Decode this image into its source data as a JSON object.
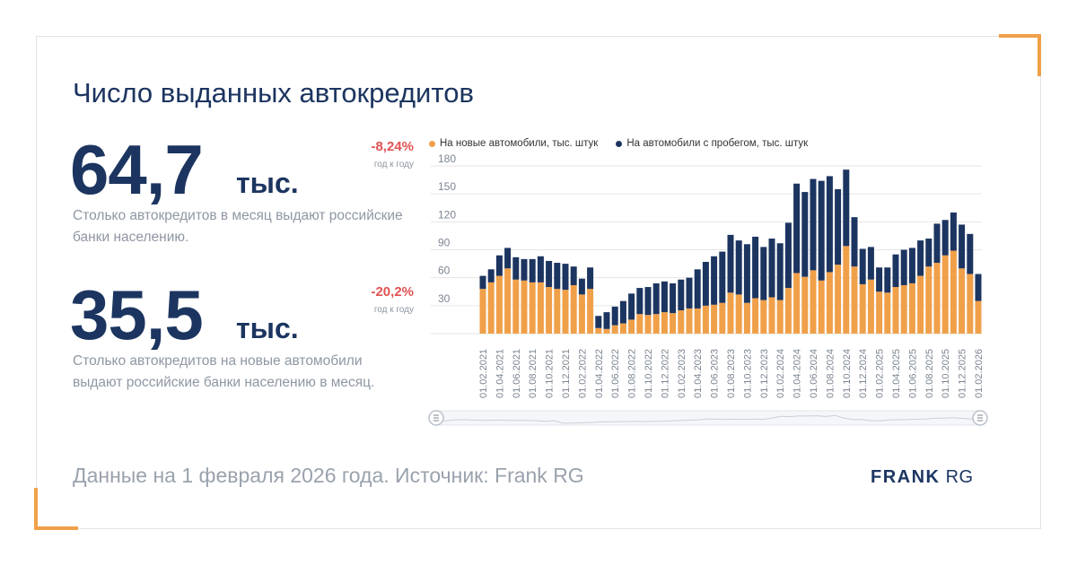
{
  "title": "Число выданных автокредитов",
  "stats": [
    {
      "value": "64,7",
      "unit": "тыс.",
      "description": "Столько автокредитов в месяц выдают российские банки населению.",
      "change": "-8,24%",
      "change_label": "год к году"
    },
    {
      "value": "35,5",
      "unit": "тыс.",
      "description": "Столько автокредитов на новые автомобили выдают российские банки населению в месяц.",
      "change": "-20,2%",
      "change_label": "год к году"
    }
  ],
  "footer": "Данные на 1 февраля 2026 года. Источник: Frank RG",
  "brand": {
    "bold": "FRANK",
    "rest": "RG"
  },
  "colors": {
    "accent": "#f0a049",
    "navy": "#1c3560",
    "negative": "#e05252"
  },
  "chart_data": {
    "type": "bar",
    "stacked": true,
    "grid": true,
    "legend_position": "top",
    "ylim": [
      0,
      180
    ],
    "yticks": [
      30,
      60,
      90,
      120,
      150,
      180
    ],
    "tick_labels": [
      "01.02.2021",
      "01.04.2021",
      "01.06.2021",
      "01.08.2021",
      "01.10.2021",
      "01.12.2021",
      "01.02.2022",
      "01.04.2022",
      "01.06.2022",
      "01.08.2022",
      "01.10.2022",
      "01.12.2022",
      "01.02.2023",
      "01.04.2023",
      "01.06.2023",
      "01.08.2023",
      "01.10.2023",
      "01.12.2023",
      "01.02.2024",
      "01.04.2024",
      "01.06.2024",
      "01.08.2024",
      "01.10.2024",
      "01.12.2024",
      "01.02.2025",
      "01.04.2025",
      "01.06.2025",
      "01.08.2025",
      "01.10.2025",
      "01.12.2025",
      "01.02.2026"
    ],
    "categories": [
      "01.02.2021",
      "01.03.2021",
      "01.04.2021",
      "01.05.2021",
      "01.06.2021",
      "01.07.2021",
      "01.08.2021",
      "01.09.2021",
      "01.10.2021",
      "01.11.2021",
      "01.12.2021",
      "01.01.2022",
      "01.02.2022",
      "01.03.2022",
      "01.04.2022",
      "01.05.2022",
      "01.06.2022",
      "01.07.2022",
      "01.08.2022",
      "01.09.2022",
      "01.10.2022",
      "01.11.2022",
      "01.12.2022",
      "01.01.2023",
      "01.02.2023",
      "01.03.2023",
      "01.04.2023",
      "01.05.2023",
      "01.06.2023",
      "01.07.2023",
      "01.08.2023",
      "01.09.2023",
      "01.10.2023",
      "01.11.2023",
      "01.12.2023",
      "01.01.2024",
      "01.02.2024",
      "01.03.2024",
      "01.04.2024",
      "01.05.2024",
      "01.06.2024",
      "01.07.2024",
      "01.08.2024",
      "01.09.2024",
      "01.10.2024",
      "01.11.2024",
      "01.12.2024",
      "01.01.2025",
      "01.02.2025",
      "01.03.2025",
      "01.04.2025",
      "01.05.2025",
      "01.06.2025",
      "01.07.2025",
      "01.08.2025",
      "01.09.2025",
      "01.10.2025",
      "01.11.2025",
      "01.12.2025",
      "01.01.2026",
      "01.02.2026"
    ],
    "series": [
      {
        "name": "На новые автомобили, тыс. штук",
        "color": "#f0a049",
        "values": [
          48,
          55,
          62,
          70,
          58,
          57,
          55,
          55,
          50,
          48,
          47,
          52,
          42,
          48,
          6,
          5,
          9,
          11,
          15,
          21,
          20,
          21,
          23,
          22,
          25,
          27,
          27,
          30,
          31,
          33,
          44,
          42,
          33,
          38,
          36,
          39,
          36,
          49,
          65,
          61,
          68,
          57,
          66,
          74,
          94,
          72,
          53,
          58,
          45,
          44,
          50,
          52,
          54,
          62,
          72,
          76,
          84,
          89,
          70,
          64,
          35
        ]
      },
      {
        "name": "На автомобили с пробегом, тыс. штук",
        "color": "#1c3560",
        "values": [
          14,
          14,
          22,
          22,
          24,
          23,
          25,
          28,
          28,
          28,
          28,
          20,
          17,
          23,
          13,
          18,
          20,
          24,
          28,
          28,
          30,
          33,
          33,
          32,
          33,
          33,
          42,
          47,
          52,
          55,
          62,
          58,
          63,
          66,
          57,
          63,
          61,
          70,
          96,
          91,
          98,
          107,
          103,
          81,
          82,
          53,
          38,
          35,
          26,
          27,
          35,
          38,
          38,
          38,
          30,
          42,
          38,
          41,
          47,
          43,
          29
        ]
      }
    ]
  }
}
